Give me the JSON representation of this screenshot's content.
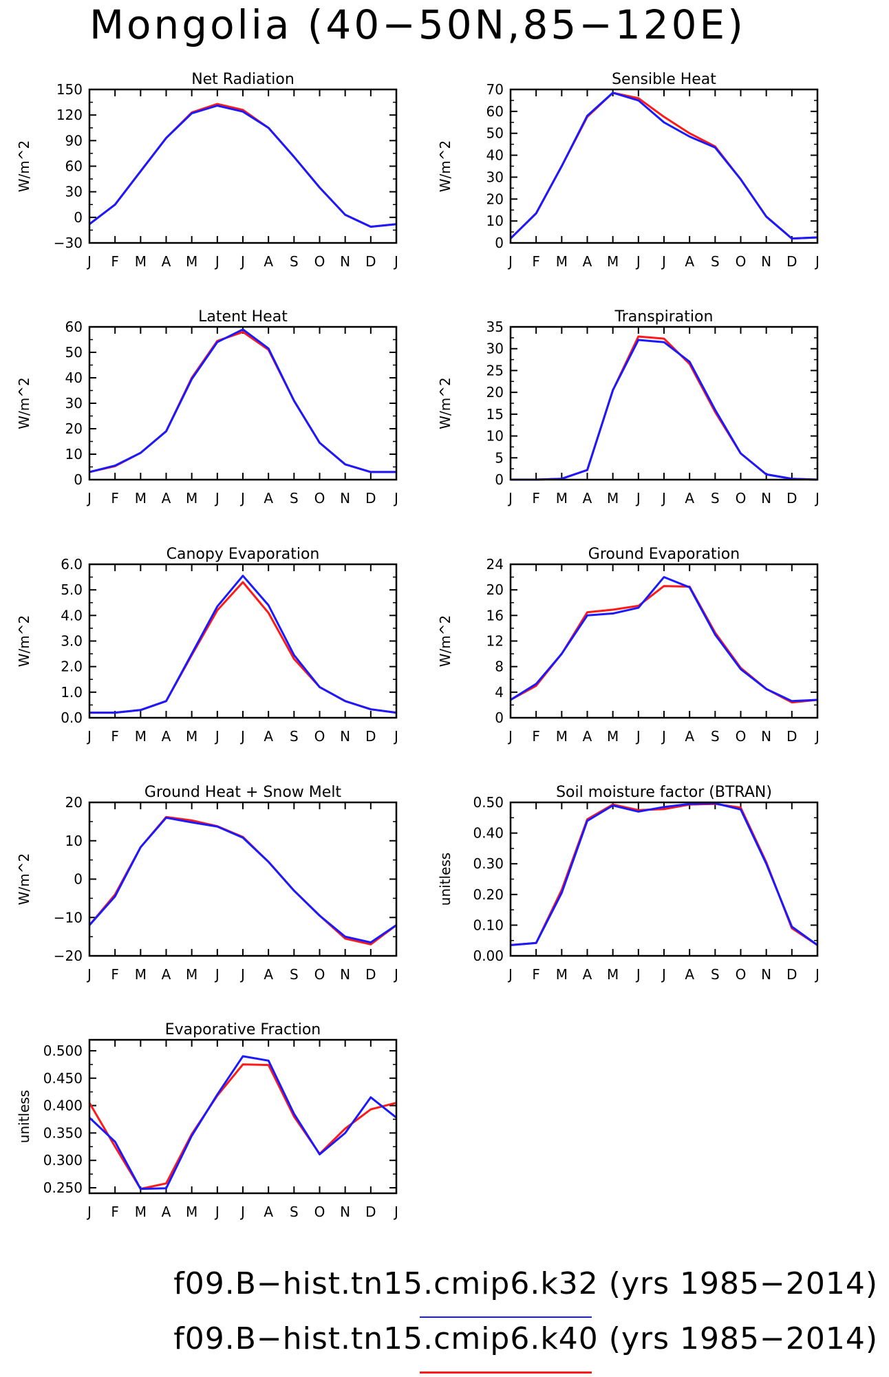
{
  "title": "Mongolia (40−50N,85−120E)",
  "months": [
    "J",
    "F",
    "M",
    "A",
    "M",
    "J",
    "J",
    "A",
    "S",
    "O",
    "N",
    "D",
    "J"
  ],
  "colors": {
    "k32": "#1a1aff",
    "k40": "#ff1a1a"
  },
  "legend": [
    {
      "name": "f09.B−hist.tn15.cmip6.k32",
      "years": "(yrs 1985−2014)",
      "color": "#1a1aff"
    },
    {
      "name": "f09.B−hist.tn15.cmip6.k40",
      "years": "(yrs 1985−2014)",
      "color": "#ff1a1a"
    }
  ],
  "chart_data": [
    {
      "type": "line",
      "title": "Net Radiation",
      "ylabel": "W/m^2",
      "ylim": [
        -30,
        150
      ],
      "yticks": [
        -30,
        0,
        30,
        60,
        90,
        120,
        150
      ],
      "yticklabels": [
        "−30",
        "0",
        "30",
        "60",
        "90",
        "120",
        "150"
      ],
      "series": [
        {
          "name": "f09.B−hist.tn15.cmip6.k32",
          "values": [
            -8,
            15,
            54,
            93,
            122,
            131,
            124,
            105,
            71,
            35,
            3,
            -11,
            -8
          ]
        },
        {
          "name": "f09.B−hist.tn15.cmip6.k40",
          "values": [
            -8,
            15,
            54,
            93,
            123,
            133,
            126,
            105,
            71,
            35,
            3,
            -11,
            -8
          ]
        }
      ]
    },
    {
      "type": "line",
      "title": "Sensible Heat",
      "ylabel": "W/m^2",
      "ylim": [
        0,
        70
      ],
      "yticks": [
        0,
        10,
        20,
        30,
        40,
        50,
        60,
        70
      ],
      "yticklabels": [
        "0",
        "10",
        "20",
        "30",
        "40",
        "50",
        "60",
        "70"
      ],
      "series": [
        {
          "name": "f09.B−hist.tn15.cmip6.k32",
          "values": [
            2,
            13.5,
            35,
            58,
            68.5,
            65,
            55,
            48.5,
            43.5,
            29,
            12,
            2,
            2.5
          ]
        },
        {
          "name": "f09.B−hist.tn15.cmip6.k40",
          "values": [
            2,
            13.5,
            35,
            57.5,
            68.5,
            66,
            57.5,
            50,
            44,
            29,
            12,
            2,
            2.5
          ]
        }
      ]
    },
    {
      "type": "line",
      "title": "Latent Heat",
      "ylabel": "W/m^2",
      "ylim": [
        0,
        60
      ],
      "yticks": [
        0,
        10,
        20,
        30,
        40,
        50,
        60
      ],
      "yticklabels": [
        "0",
        "10",
        "20",
        "30",
        "40",
        "50",
        "60"
      ],
      "series": [
        {
          "name": "f09.B−hist.tn15.cmip6.k32",
          "values": [
            3,
            5.5,
            10.5,
            19,
            39.5,
            54,
            59,
            51.5,
            31,
            14.5,
            6,
            3,
            3
          ]
        },
        {
          "name": "f09.B−hist.tn15.cmip6.k40",
          "values": [
            3,
            5.3,
            10.5,
            19,
            40,
            54.5,
            58,
            51,
            31,
            14.5,
            6,
            3,
            3
          ]
        }
      ]
    },
    {
      "type": "line",
      "title": "Transpiration",
      "ylabel": "W/m^2",
      "ylim": [
        0,
        35
      ],
      "yticks": [
        0,
        5,
        10,
        15,
        20,
        25,
        30,
        35
      ],
      "yticklabels": [
        "0",
        "5",
        "10",
        "15",
        "20",
        "25",
        "30",
        "35"
      ],
      "series": [
        {
          "name": "f09.B−hist.tn15.cmip6.k32",
          "values": [
            0,
            0,
            0.2,
            2.2,
            20.5,
            32,
            31.5,
            27,
            16,
            6,
            1.2,
            0.2,
            0
          ]
        },
        {
          "name": "f09.B−hist.tn15.cmip6.k40",
          "values": [
            0,
            0,
            0.2,
            2.2,
            20.5,
            32.8,
            32.3,
            26.5,
            15.5,
            6,
            1.2,
            0.2,
            0
          ]
        }
      ]
    },
    {
      "type": "line",
      "title": "Canopy Evaporation",
      "ylabel": "W/m^2",
      "ylim": [
        0,
        6
      ],
      "yticks": [
        0,
        1,
        2,
        3,
        4,
        5,
        6
      ],
      "yticklabels": [
        "0.0",
        "1.0",
        "2.0",
        "3.0",
        "4.0",
        "5.0",
        "6.0"
      ],
      "series": [
        {
          "name": "f09.B−hist.tn15.cmip6.k32",
          "values": [
            0.2,
            0.2,
            0.3,
            0.65,
            2.5,
            4.35,
            5.55,
            4.4,
            2.45,
            1.2,
            0.65,
            0.33,
            0.2
          ]
        },
        {
          "name": "f09.B−hist.tn15.cmip6.k40",
          "values": [
            0.2,
            0.2,
            0.3,
            0.65,
            2.45,
            4.2,
            5.3,
            4.1,
            2.3,
            1.2,
            0.65,
            0.33,
            0.2
          ]
        }
      ]
    },
    {
      "type": "line",
      "title": "Ground Evaporation",
      "ylabel": "W/m^2",
      "ylim": [
        0,
        24
      ],
      "yticks": [
        0,
        4,
        8,
        12,
        16,
        20,
        24
      ],
      "yticklabels": [
        "0",
        "4",
        "8",
        "12",
        "16",
        "20",
        "24"
      ],
      "series": [
        {
          "name": "f09.B−hist.tn15.cmip6.k32",
          "values": [
            2.8,
            5.3,
            10,
            16,
            16.3,
            17.2,
            22,
            20.4,
            13,
            7.6,
            4.5,
            2.6,
            2.8
          ]
        },
        {
          "name": "f09.B−hist.tn15.cmip6.k40",
          "values": [
            2.8,
            5,
            10,
            16.5,
            16.9,
            17.5,
            20.6,
            20.5,
            13.3,
            7.8,
            4.5,
            2.4,
            2.8
          ]
        }
      ]
    },
    {
      "type": "line",
      "title": "Ground Heat + Snow Melt",
      "ylabel": "W/m^2",
      "ylim": [
        -20,
        20
      ],
      "yticks": [
        -20,
        -10,
        0,
        10,
        20
      ],
      "yticklabels": [
        "−20",
        "−10",
        "0",
        "10",
        "20"
      ],
      "series": [
        {
          "name": "f09.B−hist.tn15.cmip6.k32",
          "values": [
            -12,
            -4.5,
            8.3,
            16,
            14.8,
            13.7,
            10.8,
            4.5,
            -3,
            -9.5,
            -15,
            -16.5,
            -12
          ]
        },
        {
          "name": "f09.B−hist.tn15.cmip6.k40",
          "values": [
            -12,
            -4,
            8.3,
            16.2,
            15.3,
            13.8,
            11,
            4.5,
            -3,
            -9.5,
            -15.5,
            -17,
            -12
          ]
        }
      ]
    },
    {
      "type": "line",
      "title": "Soil moisture factor (BTRAN)",
      "ylabel": "unitless",
      "ylim": [
        0,
        0.5
      ],
      "yticks": [
        0,
        0.1,
        0.2,
        0.3,
        0.4,
        0.5
      ],
      "yticklabels": [
        "0.00",
        "0.10",
        "0.20",
        "0.30",
        "0.40",
        "0.50"
      ],
      "series": [
        {
          "name": "f09.B−hist.tn15.cmip6.k32",
          "values": [
            0.035,
            0.042,
            0.205,
            0.44,
            0.49,
            0.47,
            0.485,
            0.495,
            0.497,
            0.477,
            0.3,
            0.095,
            0.035
          ]
        },
        {
          "name": "f09.B−hist.tn15.cmip6.k40",
          "values": [
            0.035,
            0.042,
            0.215,
            0.445,
            0.493,
            0.475,
            0.478,
            0.493,
            0.495,
            0.483,
            0.305,
            0.09,
            0.035
          ]
        }
      ]
    },
    {
      "type": "line",
      "title": "Evaporative Fraction",
      "ylabel": "unitless",
      "ylim": [
        0.24,
        0.52
      ],
      "yticks": [
        0.25,
        0.3,
        0.35,
        0.4,
        0.45,
        0.5
      ],
      "yticklabels": [
        "0.250",
        "0.300",
        "0.350",
        "0.400",
        "0.450",
        "0.500"
      ],
      "series": [
        {
          "name": "f09.B−hist.tn15.cmip6.k32",
          "values": [
            0.378,
            0.334,
            0.248,
            0.249,
            0.345,
            0.42,
            0.49,
            0.482,
            0.385,
            0.311,
            0.35,
            0.415,
            0.378
          ]
        },
        {
          "name": "f09.B−hist.tn15.cmip6.k40",
          "values": [
            0.405,
            0.325,
            0.248,
            0.258,
            0.348,
            0.418,
            0.475,
            0.474,
            0.38,
            0.312,
            0.358,
            0.393,
            0.405
          ]
        }
      ]
    }
  ]
}
